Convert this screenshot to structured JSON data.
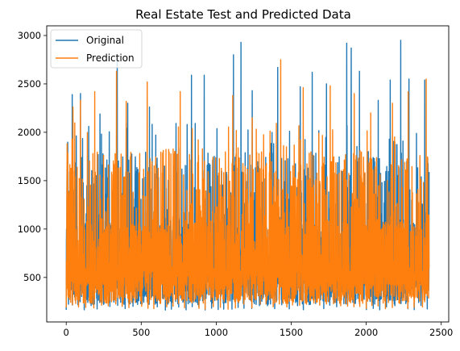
{
  "chart_data": {
    "type": "line",
    "title": "Real Estate Test and Predicted Data",
    "xlabel": "",
    "ylabel": "",
    "xlim": [
      -130,
      2550
    ],
    "ylim": [
      40,
      3100
    ],
    "x_ticks": [
      0,
      500,
      1000,
      1500,
      2000,
      2500
    ],
    "y_ticks": [
      500,
      1000,
      1500,
      2000,
      2500,
      3000
    ],
    "grid": false,
    "legend_position": "top-left",
    "n_points": 2420,
    "series": [
      {
        "name": "Original",
        "color": "#1f77b4",
        "peaks": [
          {
            "x": 5,
            "y": 1620
          },
          {
            "x": 40,
            "y": 2390
          },
          {
            "x": 95,
            "y": 2400
          },
          {
            "x": 150,
            "y": 2060
          },
          {
            "x": 225,
            "y": 2190
          },
          {
            "x": 340,
            "y": 2760
          },
          {
            "x": 410,
            "y": 2300
          },
          {
            "x": 555,
            "y": 2260
          },
          {
            "x": 835,
            "y": 2590
          },
          {
            "x": 920,
            "y": 2590
          },
          {
            "x": 1115,
            "y": 2800
          },
          {
            "x": 1165,
            "y": 2930
          },
          {
            "x": 1240,
            "y": 2430
          },
          {
            "x": 1410,
            "y": 2670
          },
          {
            "x": 1560,
            "y": 2470
          },
          {
            "x": 1640,
            "y": 2620
          },
          {
            "x": 1735,
            "y": 2500
          },
          {
            "x": 1870,
            "y": 2920
          },
          {
            "x": 1900,
            "y": 2870
          },
          {
            "x": 1955,
            "y": 2630
          },
          {
            "x": 2080,
            "y": 2330
          },
          {
            "x": 2160,
            "y": 2540
          },
          {
            "x": 2230,
            "y": 2950
          },
          {
            "x": 2285,
            "y": 2550
          },
          {
            "x": 2390,
            "y": 2540
          },
          {
            "x": 2420,
            "y": 1590
          }
        ],
        "range": {
          "min": 160,
          "max": 2950
        }
      },
      {
        "name": "Prediction",
        "color": "#ff7f0e",
        "peaks": [
          {
            "x": 5,
            "y": 1460
          },
          {
            "x": 45,
            "y": 2260
          },
          {
            "x": 95,
            "y": 2330
          },
          {
            "x": 190,
            "y": 2420
          },
          {
            "x": 335,
            "y": 2630
          },
          {
            "x": 400,
            "y": 2320
          },
          {
            "x": 540,
            "y": 2520
          },
          {
            "x": 760,
            "y": 2420
          },
          {
            "x": 1110,
            "y": 2380
          },
          {
            "x": 1240,
            "y": 2150
          },
          {
            "x": 1430,
            "y": 2750
          },
          {
            "x": 1580,
            "y": 2460
          },
          {
            "x": 1760,
            "y": 2480
          },
          {
            "x": 1920,
            "y": 2400
          },
          {
            "x": 2030,
            "y": 2200
          },
          {
            "x": 2175,
            "y": 2300
          },
          {
            "x": 2280,
            "y": 2420
          },
          {
            "x": 2400,
            "y": 2550
          }
        ],
        "range": {
          "min": 170,
          "max": 2750
        }
      }
    ]
  }
}
